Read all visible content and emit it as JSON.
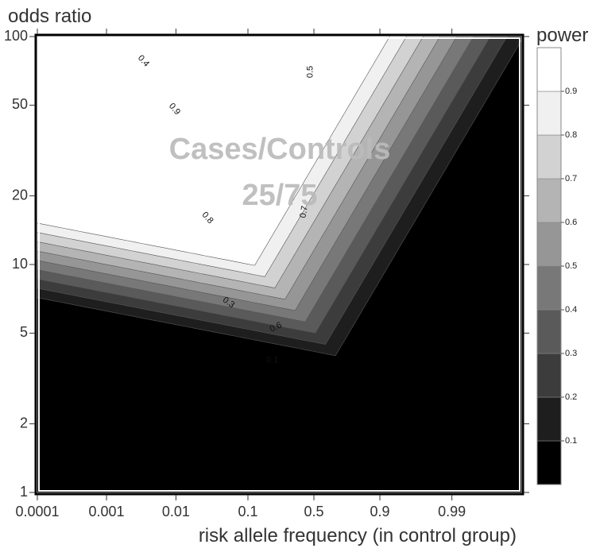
{
  "chart_data": {
    "type": "heatmap",
    "subtype": "filled-contour",
    "ylabel": "odds ratio",
    "xlabel": "risk allele frequency (in control group)",
    "colorbar_title": "power",
    "annotation": [
      "Cases/Controls",
      "25/75"
    ],
    "y_scale": "log",
    "x_scale": "logit",
    "xlim": [
      0.0001,
      0.999
    ],
    "ylim": [
      1,
      100
    ],
    "x_ticks": [
      {
        "value": 0.0001,
        "label": "0.0001"
      },
      {
        "value": 0.001,
        "label": "0.001"
      },
      {
        "value": 0.01,
        "label": "0.01"
      },
      {
        "value": 0.1,
        "label": "0.1"
      },
      {
        "value": 0.5,
        "label": "0.5"
      },
      {
        "value": 0.9,
        "label": "0.9"
      },
      {
        "value": 0.99,
        "label": "0.99"
      }
    ],
    "y_ticks": [
      {
        "value": 1,
        "label": "1"
      },
      {
        "value": 2,
        "label": "2"
      },
      {
        "value": 5,
        "label": "5"
      },
      {
        "value": 10,
        "label": "10"
      },
      {
        "value": 20,
        "label": "20"
      },
      {
        "value": 50,
        "label": "50"
      },
      {
        "value": 100,
        "label": "100"
      }
    ],
    "levels": [
      0,
      0.1,
      0.2,
      0.3,
      0.4,
      0.5,
      0.6,
      0.7,
      0.8,
      0.9,
      1.0
    ],
    "level_labels": [
      "0.1",
      "0.2",
      "0.3",
      "0.4",
      "0.5",
      "0.6",
      "0.7",
      "0.8",
      "0.9"
    ],
    "colors": [
      "#000000",
      "#1e1e1e",
      "#3c3c3c",
      "#5a5a5a",
      "#787878",
      "#969696",
      "#b4b4b4",
      "#d2d2d2",
      "#f0f0f0",
      "#ffffff"
    ],
    "contour_labels": [
      {
        "text": "0.4",
        "x": 0.0034,
        "y": 78,
        "angle": 48
      },
      {
        "text": "0.9",
        "x": 0.0095,
        "y": 48,
        "angle": 50
      },
      {
        "text": "0.8",
        "x": 0.028,
        "y": 16,
        "angle": 48
      },
      {
        "text": "0.3",
        "x": 0.055,
        "y": 6.8,
        "angle": 35
      },
      {
        "text": "0.6",
        "x": 0.22,
        "y": 5.3,
        "angle": -25
      },
      {
        "text": "0.7",
        "x": 0.42,
        "y": 17,
        "angle": -80
      },
      {
        "text": "0.5",
        "x": 0.47,
        "y": 70,
        "angle": -90
      },
      {
        "text": "0.1",
        "x": 0.2,
        "y": 3.8,
        "angle": 0
      }
    ]
  }
}
